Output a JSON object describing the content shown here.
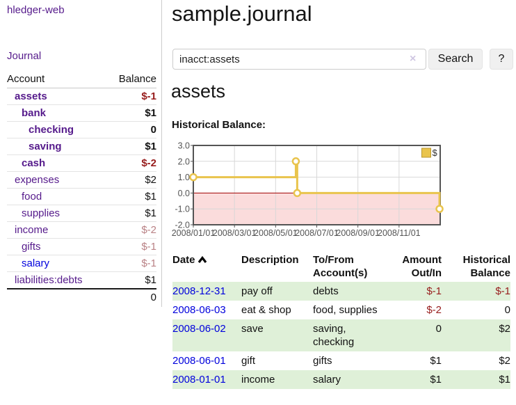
{
  "brand": {
    "label": "hledger-web"
  },
  "nav": {
    "journal": "Journal"
  },
  "sidebar": {
    "headers": {
      "account": "Account",
      "balance": "Balance"
    },
    "accounts": [
      {
        "name": "assets",
        "balance": "$-1",
        "indent": 1,
        "bold": true,
        "balance_color": "negative",
        "link_style": "visited"
      },
      {
        "name": "bank",
        "balance": "$1",
        "indent": 2,
        "bold": true,
        "balance_color": "normal",
        "link_style": "visited"
      },
      {
        "name": "checking",
        "balance": "0",
        "indent": 3,
        "bold": true,
        "balance_color": "normal",
        "link_style": "visited"
      },
      {
        "name": "saving",
        "balance": "$1",
        "indent": 3,
        "bold": true,
        "balance_color": "normal",
        "link_style": "visited"
      },
      {
        "name": "cash",
        "balance": "$-2",
        "indent": 2,
        "bold": true,
        "balance_color": "negative",
        "link_style": "visited"
      },
      {
        "name": "expenses",
        "balance": "$2",
        "indent": 1,
        "bold": false,
        "balance_color": "normal",
        "link_style": "visited"
      },
      {
        "name": "food",
        "balance": "$1",
        "indent": 2,
        "bold": false,
        "balance_color": "normal",
        "link_style": "visited"
      },
      {
        "name": "supplies",
        "balance": "$1",
        "indent": 2,
        "bold": false,
        "balance_color": "normal",
        "link_style": "visited"
      },
      {
        "name": "income",
        "balance": "$-2",
        "indent": 1,
        "bold": false,
        "balance_color": "muted-negative",
        "link_style": "visited"
      },
      {
        "name": "gifts",
        "balance": "$-1",
        "indent": 2,
        "bold": false,
        "balance_color": "muted-negative",
        "link_style": "visited"
      },
      {
        "name": "salary",
        "balance": "$-1",
        "indent": 2,
        "bold": false,
        "balance_color": "muted-negative",
        "link_style": "unvisited"
      },
      {
        "name": "liabilities:debts",
        "balance": "$1",
        "indent": 1,
        "bold": false,
        "balance_color": "normal",
        "link_style": "visited"
      }
    ],
    "total": "0"
  },
  "main": {
    "title": "sample.journal",
    "account_heading": "assets",
    "chart_heading": "Historical Balance:"
  },
  "search": {
    "value": "inacct:assets",
    "clear_icon": "×",
    "search_button": "Search",
    "help_button": "?"
  },
  "chart_data": {
    "type": "line",
    "step": true,
    "title": "Historical Balance",
    "x_range": [
      "2008-01-01",
      "2009-01-01"
    ],
    "ylim": [
      -2.0,
      3.0
    ],
    "y_ticks": [
      "3.0",
      "2.0",
      "1.0",
      "0.0",
      "-1.0",
      "-2.0"
    ],
    "x_ticks": [
      "2008/01/01",
      "2008/03/01",
      "2008/05/01",
      "2008/07/01",
      "2008/09/01",
      "2008/11/01"
    ],
    "series": [
      {
        "name": "$",
        "color": "#e9c44d",
        "points": [
          {
            "date": "2008-01-01",
            "value": 1.0
          },
          {
            "date": "2008-06-01",
            "value": 2.0
          },
          {
            "date": "2008-06-03",
            "value": 0.0
          },
          {
            "date": "2008-12-31",
            "value": -1.0
          }
        ]
      }
    ],
    "legend": {
      "label": "$",
      "position": "top-right"
    },
    "grid": true,
    "negative_region": true
  },
  "register": {
    "headers": {
      "date": "Date",
      "description": "Description",
      "accounts": "To/From Account(s)",
      "amount": "Amount Out/In",
      "balance": "Historical Balance"
    },
    "sort": "ascending",
    "rows": [
      {
        "date": "2008-12-31",
        "description": "pay off",
        "accounts": "debts",
        "amount": "$-1",
        "balance": "$-1",
        "amount_color": "negative",
        "balance_color": "negative",
        "shaded": true
      },
      {
        "date": "2008-06-03",
        "description": "eat & shop",
        "accounts": "food, supplies",
        "amount": "$-2",
        "balance": "0",
        "amount_color": "negative",
        "balance_color": "normal",
        "shaded": false
      },
      {
        "date": "2008-06-02",
        "description": "save",
        "accounts": "saving, checking",
        "amount": "0",
        "balance": "$2",
        "amount_color": "normal",
        "balance_color": "normal",
        "shaded": true
      },
      {
        "date": "2008-06-01",
        "description": "gift",
        "accounts": "gifts",
        "amount": "$1",
        "balance": "$2",
        "amount_color": "normal",
        "balance_color": "normal",
        "shaded": false
      },
      {
        "date": "2008-01-01",
        "description": "income",
        "accounts": "salary",
        "amount": "$1",
        "balance": "$1",
        "amount_color": "normal",
        "balance_color": "normal",
        "shaded": true
      }
    ]
  },
  "colors": {
    "link_visited": "#551a8b",
    "link_unvisited": "#0000dd",
    "negative": "#971c1c",
    "muted_negative": "#b98185",
    "row_shade": "#dff0d8",
    "series": "#e9c44d",
    "zero_line": "#a00000",
    "negative_region_fill": "#fbdcdc",
    "grid_line": "#d8d8d8",
    "plot_border": "#545454"
  }
}
